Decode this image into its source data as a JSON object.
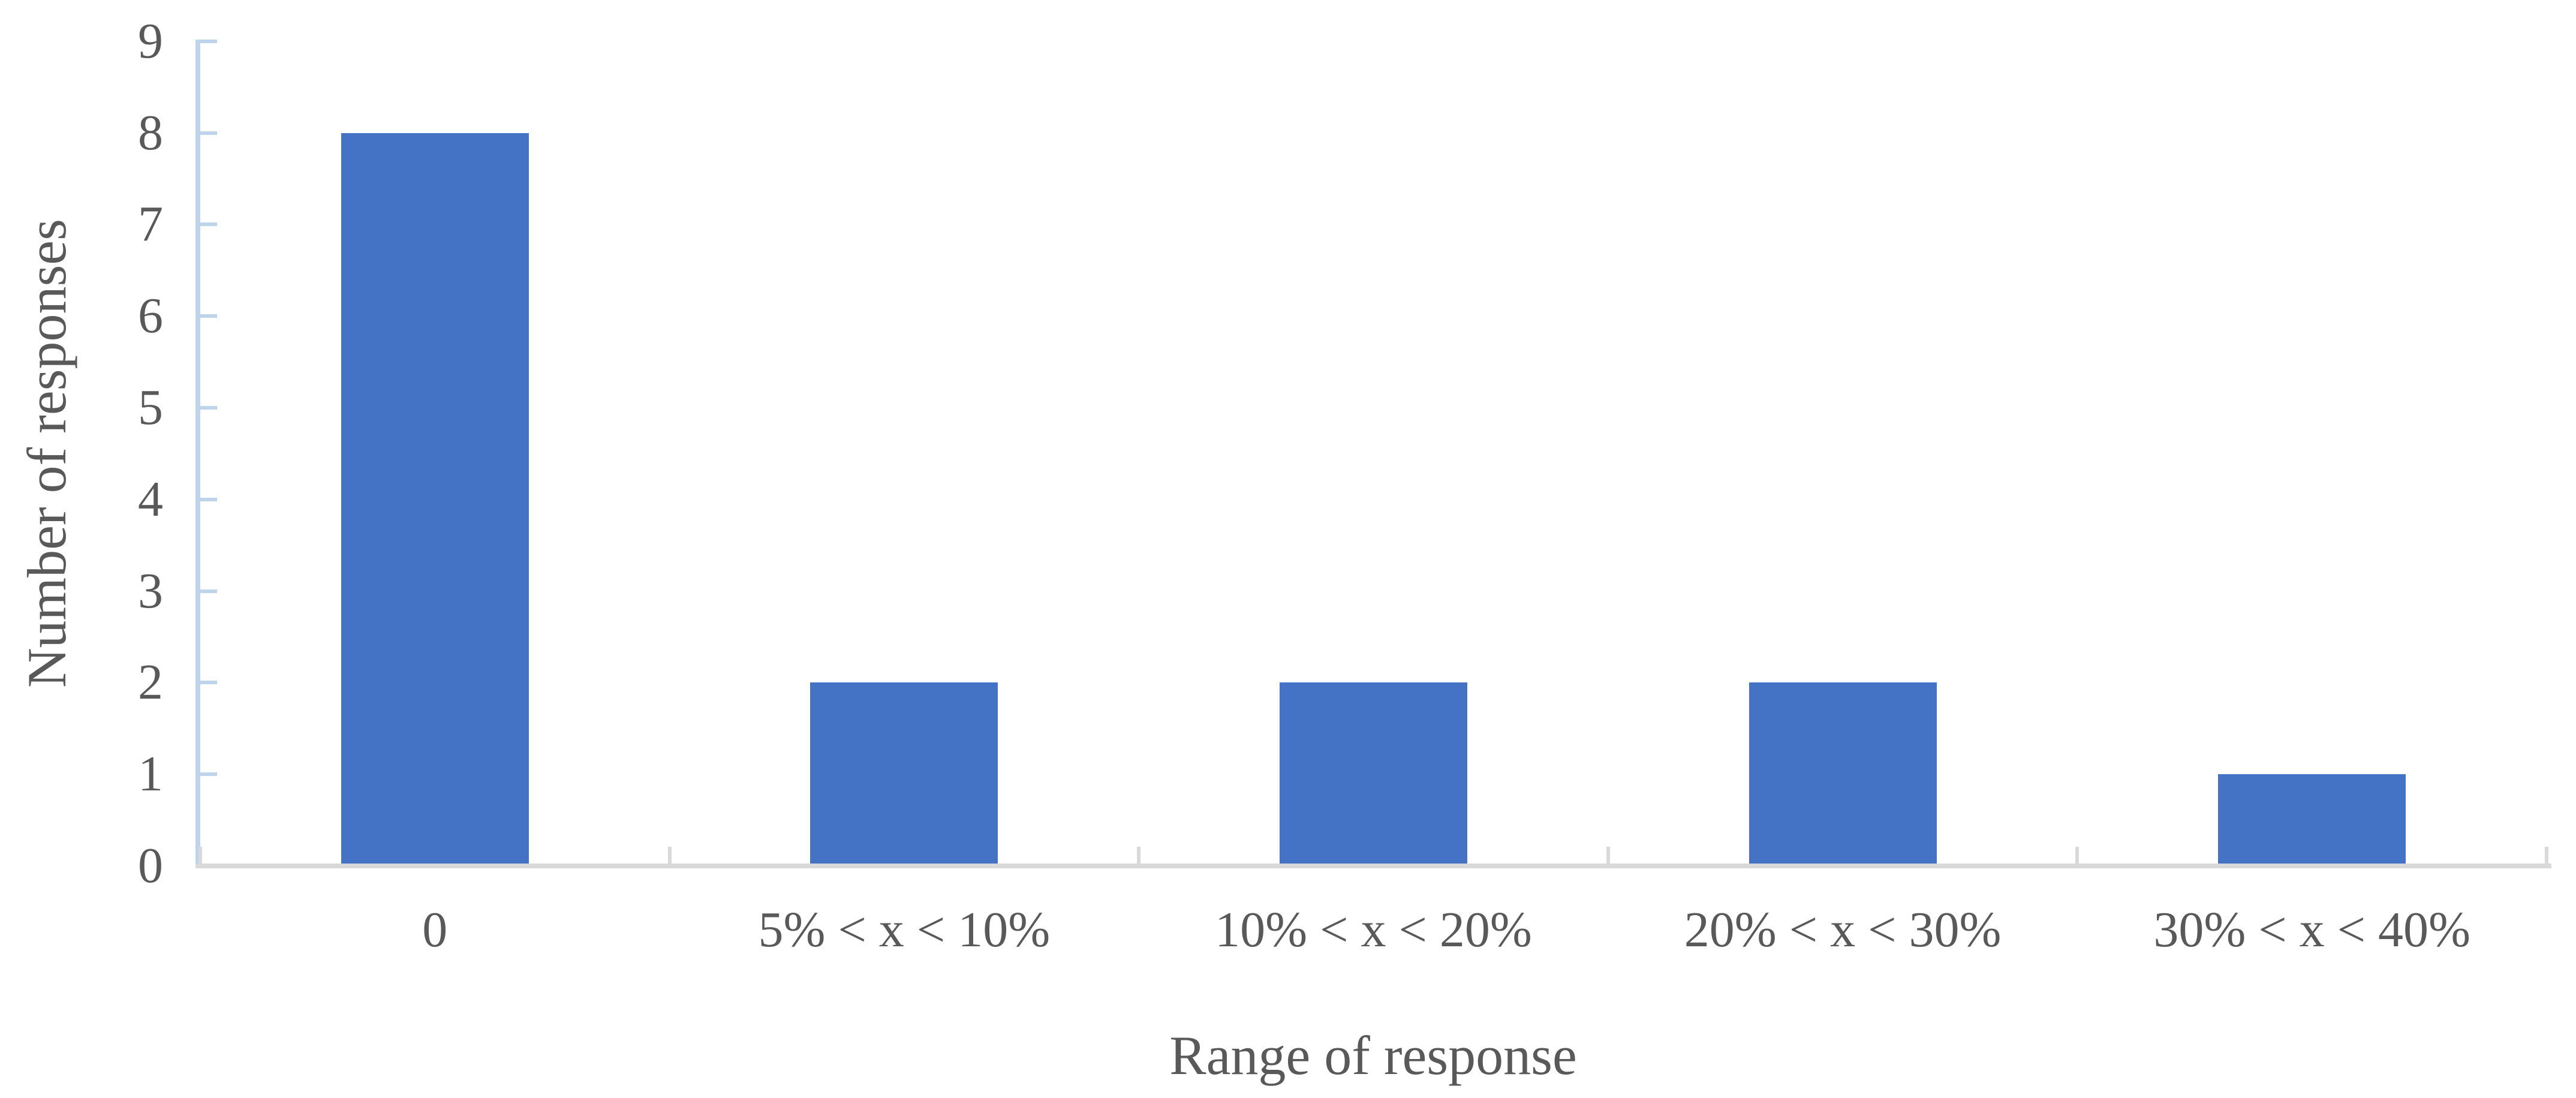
{
  "chart_data": {
    "type": "bar",
    "title": "",
    "xlabel": "Range of response",
    "ylabel": "Number of responses",
    "categories": [
      "0",
      "5% < x < 10%",
      "10% < x < 20%",
      "20% < x < 30%",
      "30% < x < 40%"
    ],
    "values": [
      8,
      2,
      2,
      2,
      1
    ],
    "yticks": [
      "0",
      "1",
      "2",
      "3",
      "4",
      "5",
      "6",
      "7",
      "8",
      "9"
    ],
    "ylim": [
      0,
      9
    ],
    "grid": false,
    "legend": false,
    "layout_hints": {
      "bar_gap_ratio": "40% bar width per category slot",
      "y_tick_marks": "inside, light blue",
      "x_tick_marks": "inside, gray, at category boundaries"
    },
    "colors": {
      "bar": "#4472C4",
      "value_axis": "#BDD4EA",
      "category_axis": "#D9D9D9",
      "text": "#595959",
      "background": "#FFFFFF"
    }
  }
}
